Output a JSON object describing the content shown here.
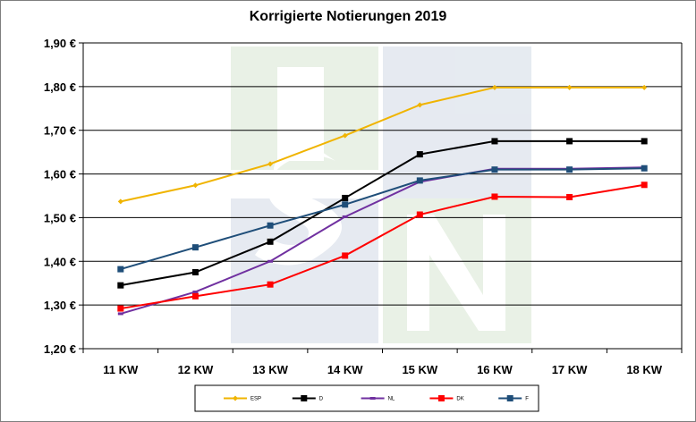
{
  "chart_data": {
    "type": "line",
    "title": "Korrigierte Notierungen 2019",
    "xlabel": "",
    "ylabel": "",
    "categories": [
      "11 KW",
      "12 KW",
      "13 KW",
      "14 KW",
      "15 KW",
      "16 KW",
      "17 KW",
      "18 KW"
    ],
    "y_tick_labels": [
      "1,20 €",
      "1,30 €",
      "1,40 €",
      "1,50 €",
      "1,60 €",
      "1,70 €",
      "1,80 €",
      "1,90 €"
    ],
    "ylim": [
      1.2,
      1.9
    ],
    "grid": true,
    "legend_position": "bottom",
    "series": [
      {
        "name": "ESP",
        "color": "#f0b400",
        "marker": "diamond",
        "values": [
          1.537,
          1.574,
          1.623,
          1.688,
          1.758,
          1.798,
          1.798,
          1.798
        ]
      },
      {
        "name": "D",
        "color": "#000000",
        "marker": "square",
        "values": [
          1.345,
          1.375,
          1.445,
          1.545,
          1.645,
          1.675,
          1.675,
          1.675
        ]
      },
      {
        "name": "NL",
        "color": "#7030a0",
        "marker": "dash",
        "values": [
          1.28,
          1.33,
          1.4,
          1.502,
          1.582,
          1.612,
          1.612,
          1.615
        ]
      },
      {
        "name": "DK",
        "color": "#ff0000",
        "marker": "square",
        "values": [
          1.292,
          1.32,
          1.347,
          1.413,
          1.507,
          1.548,
          1.547,
          1.575
        ]
      },
      {
        "name": "F",
        "color": "#1f4e79",
        "marker": "square",
        "values": [
          1.382,
          1.432,
          1.482,
          1.53,
          1.585,
          1.61,
          1.61,
          1.613
        ]
      }
    ]
  }
}
